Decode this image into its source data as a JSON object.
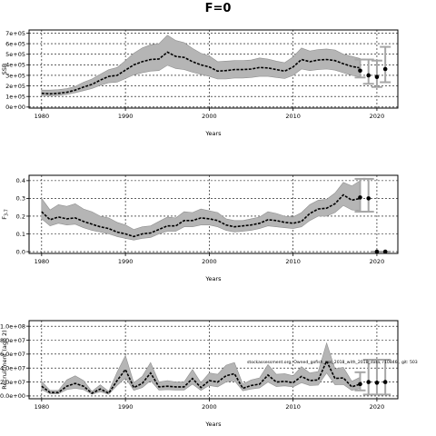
{
  "figure": {
    "title": "F=0",
    "note": "stockassessment.org, Owned_gofish_nss_2018_with_2018_data, r10846 , git: 503"
  },
  "chart_data": [
    {
      "type": "line",
      "ylabel": "SSB",
      "xlabel": "Years",
      "xlim": [
        1978.5,
        2022.5
      ],
      "ylim": [
        -10000,
        730000
      ],
      "xticks": [
        1980,
        1990,
        2000,
        2010,
        2020
      ],
      "yticks": [
        0,
        100000,
        200000,
        300000,
        400000,
        500000,
        600000,
        700000
      ],
      "ytick_labels": [
        "0e+00",
        "1e+05",
        "2e+05",
        "3e+05",
        "4e+05",
        "5e+05",
        "6e+05",
        "7e+05"
      ],
      "grid": true,
      "x": [
        1980,
        1981,
        1982,
        1983,
        1984,
        1985,
        1986,
        1987,
        1988,
        1989,
        1990,
        1991,
        1992,
        1993,
        1994,
        1995,
        1996,
        1997,
        1998,
        1999,
        2000,
        2001,
        2002,
        2003,
        2004,
        2005,
        2006,
        2007,
        2008,
        2009,
        2010,
        2011,
        2012,
        2013,
        2014,
        2015,
        2016,
        2017,
        2018
      ],
      "estimate": [
        130000,
        125000,
        130000,
        140000,
        160000,
        190000,
        215000,
        255000,
        290000,
        300000,
        350000,
        400000,
        430000,
        450000,
        455000,
        520000,
        480000,
        470000,
        430000,
        400000,
        380000,
        340000,
        345000,
        355000,
        355000,
        360000,
        375000,
        370000,
        355000,
        340000,
        380000,
        450000,
        430000,
        445000,
        450000,
        440000,
        410000,
        385000,
        370000
      ],
      "lower": [
        110000,
        105000,
        110000,
        120000,
        135000,
        155000,
        175000,
        205000,
        230000,
        235000,
        270000,
        305000,
        325000,
        340000,
        345000,
        395000,
        365000,
        355000,
        330000,
        310000,
        290000,
        265000,
        265000,
        275000,
        275000,
        280000,
        290000,
        290000,
        280000,
        270000,
        300000,
        360000,
        345000,
        355000,
        360000,
        350000,
        325000,
        300000,
        285000
      ],
      "upper": [
        160000,
        160000,
        165000,
        175000,
        195000,
        235000,
        265000,
        310000,
        355000,
        375000,
        440000,
        510000,
        560000,
        590000,
        600000,
        680000,
        630000,
        610000,
        555000,
        510000,
        485000,
        430000,
        435000,
        440000,
        440000,
        445000,
        465000,
        455000,
        435000,
        420000,
        475000,
        560000,
        530000,
        545000,
        550000,
        540000,
        500000,
        480000,
        460000
      ],
      "forecast": {
        "x": [
          2018,
          2019,
          2020,
          2021
        ],
        "median": [
          345000,
          300000,
          285000,
          360000
        ],
        "lower": [
          280000,
          220000,
          190000,
          235000
        ],
        "upper": [
          450000,
          450000,
          440000,
          570000
        ]
      }
    },
    {
      "type": "line",
      "ylabel": "F",
      "ylabel_sub": "3-7",
      "xlabel": "Years",
      "xlim": [
        1978.5,
        2022.5
      ],
      "ylim": [
        -0.01,
        0.43
      ],
      "xticks": [
        1980,
        1990,
        2000,
        2010,
        2020
      ],
      "yticks": [
        0,
        0.1,
        0.2,
        0.3,
        0.4
      ],
      "ytick_labels": [
        "0.0",
        "0.1",
        "0.2",
        "0.3",
        "0.4"
      ],
      "grid": true,
      "x": [
        1980,
        1981,
        1982,
        1983,
        1984,
        1985,
        1986,
        1987,
        1988,
        1989,
        1990,
        1991,
        1992,
        1993,
        1994,
        1995,
        1996,
        1997,
        1998,
        1999,
        2000,
        2001,
        2002,
        2003,
        2004,
        2005,
        2006,
        2007,
        2008,
        2009,
        2010,
        2011,
        2012,
        2013,
        2014,
        2015,
        2016,
        2017,
        2018
      ],
      "estimate": [
        0.225,
        0.18,
        0.195,
        0.185,
        0.19,
        0.17,
        0.155,
        0.14,
        0.13,
        0.11,
        0.1,
        0.085,
        0.1,
        0.105,
        0.125,
        0.145,
        0.145,
        0.175,
        0.175,
        0.19,
        0.185,
        0.175,
        0.15,
        0.14,
        0.145,
        0.15,
        0.16,
        0.18,
        0.175,
        0.165,
        0.16,
        0.17,
        0.215,
        0.24,
        0.245,
        0.27,
        0.32,
        0.29,
        0.3
      ],
      "lower": [
        0.185,
        0.145,
        0.16,
        0.15,
        0.155,
        0.135,
        0.12,
        0.11,
        0.1,
        0.085,
        0.075,
        0.065,
        0.075,
        0.08,
        0.1,
        0.115,
        0.115,
        0.14,
        0.14,
        0.15,
        0.15,
        0.14,
        0.12,
        0.11,
        0.115,
        0.12,
        0.13,
        0.145,
        0.14,
        0.135,
        0.13,
        0.14,
        0.175,
        0.2,
        0.2,
        0.22,
        0.26,
        0.235,
        0.23
      ],
      "upper": [
        0.3,
        0.235,
        0.265,
        0.255,
        0.27,
        0.24,
        0.225,
        0.2,
        0.19,
        0.165,
        0.15,
        0.125,
        0.14,
        0.145,
        0.17,
        0.195,
        0.19,
        0.225,
        0.22,
        0.24,
        0.23,
        0.22,
        0.185,
        0.175,
        0.175,
        0.185,
        0.195,
        0.225,
        0.215,
        0.2,
        0.195,
        0.22,
        0.265,
        0.29,
        0.295,
        0.33,
        0.39,
        0.37,
        0.4
      ],
      "forecast": {
        "x": [
          2018,
          2019,
          2020,
          2021
        ],
        "median": [
          0.305,
          0.3,
          0.0,
          0.0
        ],
        "lower": [
          0.225,
          0.225,
          0.0,
          0.0
        ],
        "upper": [
          0.41,
          0.41,
          0.0,
          0.0
        ]
      }
    },
    {
      "type": "line",
      "ylabel": "Recruitment (age 2)",
      "xlabel": "Years",
      "xlim": [
        1978.5,
        2022.5
      ],
      "ylim": [
        -4000000,
        108000000
      ],
      "xticks": [
        1980,
        1990,
        2000,
        2010,
        2020
      ],
      "yticks": [
        0,
        20000000,
        40000000,
        60000000,
        80000000,
        100000000
      ],
      "ytick_labels": [
        "0.0e+00",
        "2.0e+07",
        "4.0e+07",
        "6.0e+07",
        "8.0e+07",
        "1.0e+08"
      ],
      "grid": true,
      "x": [
        1980,
        1981,
        1982,
        1983,
        1984,
        1985,
        1986,
        1987,
        1988,
        1989,
        1990,
        1991,
        1992,
        1993,
        1994,
        1995,
        1996,
        1997,
        1998,
        1999,
        2000,
        2001,
        2002,
        2003,
        2004,
        2005,
        2006,
        2007,
        2008,
        2009,
        2010,
        2011,
        2012,
        2013,
        2014,
        2015,
        2016,
        2017,
        2018
      ],
      "estimate": [
        14000000,
        5000000,
        5000000,
        14000000,
        18000000,
        14000000,
        4000000,
        10000000,
        4000000,
        22000000,
        38000000,
        12000000,
        18000000,
        33000000,
        13000000,
        14000000,
        13000000,
        13000000,
        25000000,
        12000000,
        22000000,
        20000000,
        29000000,
        32000000,
        11000000,
        15000000,
        17000000,
        30000000,
        20000000,
        21000000,
        19000000,
        28000000,
        22000000,
        23000000,
        50000000,
        25000000,
        26000000,
        13000000,
        17000000
      ],
      "lower": [
        9000000,
        3000000,
        3000000,
        9000000,
        11000000,
        9000000,
        2500000,
        6000000,
        2500000,
        15000000,
        26000000,
        8000000,
        12000000,
        22000000,
        8500000,
        9000000,
        8500000,
        8500000,
        17000000,
        8000000,
        15000000,
        13000000,
        20000000,
        22000000,
        7500000,
        10000000,
        11500000,
        20000000,
        13500000,
        14500000,
        13000000,
        19000000,
        15000000,
        15500000,
        33000000,
        16000000,
        16500000,
        8000000,
        11000000
      ],
      "upper": [
        21000000,
        8000000,
        8000000,
        23000000,
        29000000,
        22000000,
        6500000,
        16000000,
        6500000,
        34000000,
        58000000,
        19000000,
        28000000,
        48000000,
        20000000,
        22000000,
        20000000,
        20000000,
        38000000,
        19000000,
        33000000,
        31000000,
        44000000,
        48000000,
        17000000,
        23000000,
        26000000,
        45000000,
        31000000,
        32000000,
        29000000,
        42000000,
        33000000,
        35000000,
        76000000,
        39000000,
        41000000,
        21000000,
        27000000
      ],
      "forecast": {
        "x": [
          2018,
          2019,
          2020,
          2021
        ],
        "median": [
          17000000,
          20000000,
          19000000,
          20000000
        ],
        "lower": [
          8000000,
          2000000,
          2000000,
          2000000
        ],
        "upper": [
          34000000,
          52000000,
          52000000,
          52000000
        ]
      }
    }
  ]
}
